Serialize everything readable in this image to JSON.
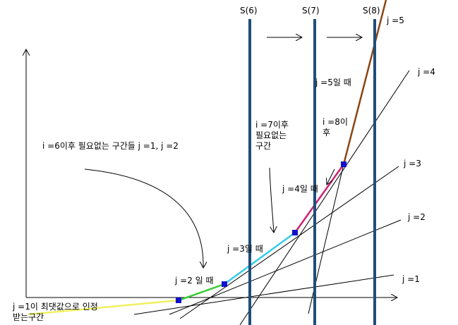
{
  "sections": [
    {
      "label": "S(6)"
    },
    {
      "label": "S(7)"
    },
    {
      "label": "S(8)"
    }
  ],
  "lines": [
    {
      "label": "j =5"
    },
    {
      "label": "j =4"
    },
    {
      "label": "j =3"
    },
    {
      "label": "j =2"
    },
    {
      "label": "j =1"
    }
  ],
  "annotations": {
    "j5": "j =5일 때",
    "i7": [
      "i =7이후",
      "필요없는",
      "구간"
    ],
    "i8": [
      "i =8이",
      "후"
    ],
    "i6": "i =6이후  필요없는  구간들  j =1, j =2",
    "j4": "j =4일 때",
    "j3": "j =3일 때",
    "j2": "j =2  일 때",
    "j1": [
      "j =1이 최댓값으로 인정",
      "받는구간"
    ]
  }
}
